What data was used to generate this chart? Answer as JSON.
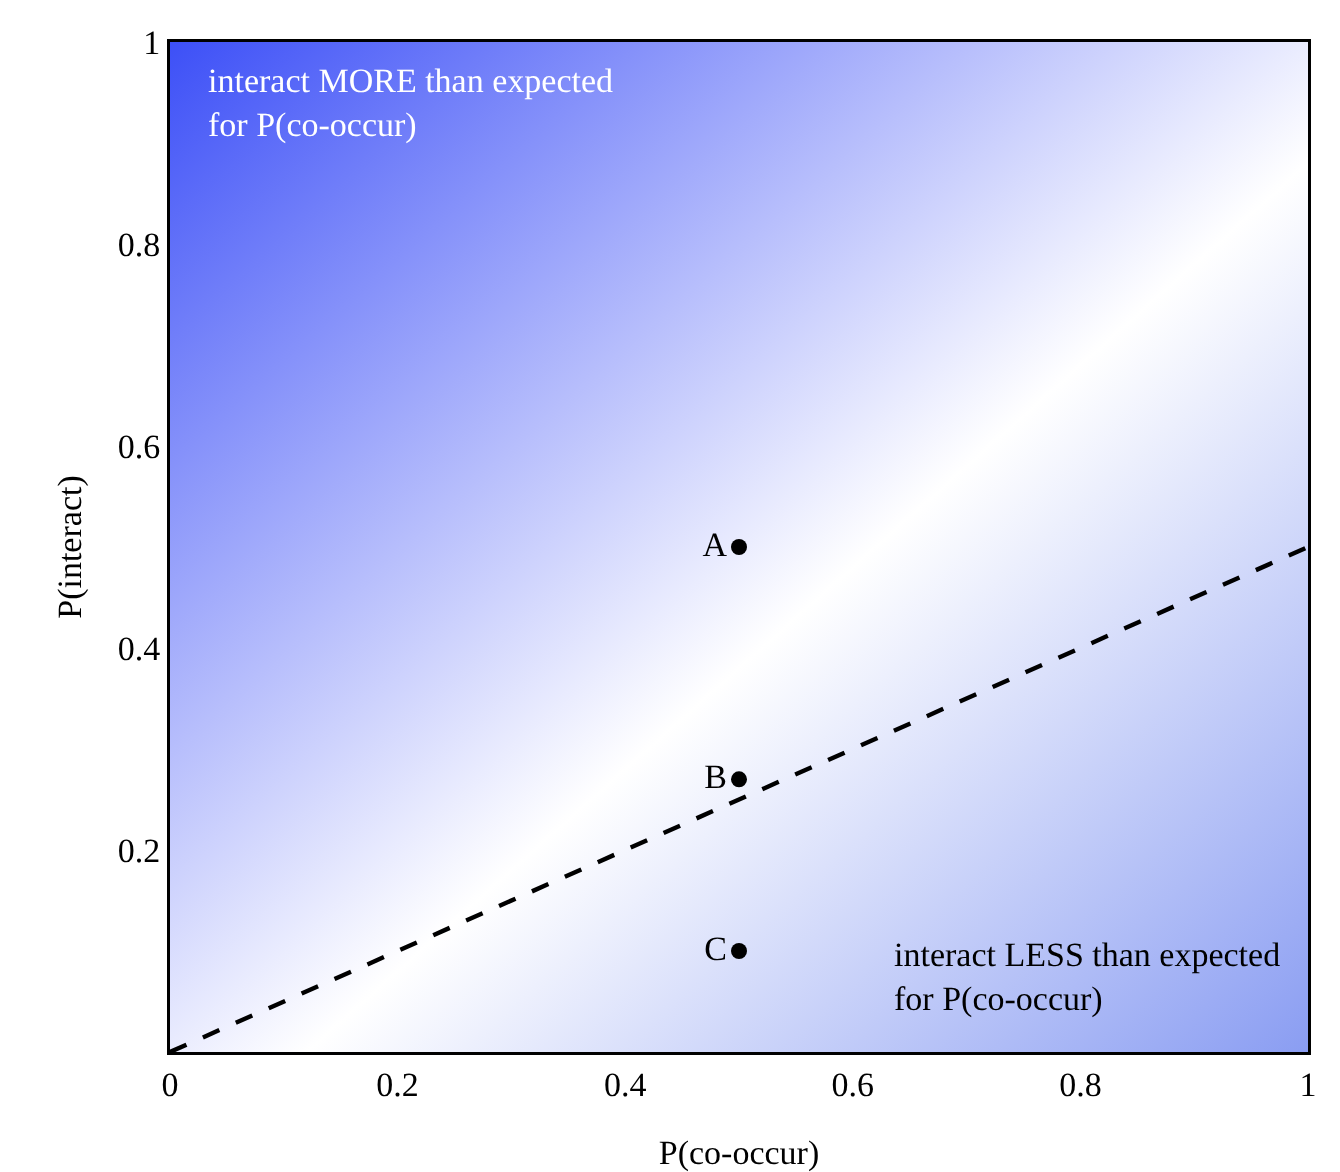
{
  "chart_data": {
    "type": "scatter",
    "xlabel": "P(co-occur)",
    "ylabel": "P(interact)",
    "xlim": [
      0,
      1
    ],
    "ylim": [
      0,
      1
    ],
    "xticks": [
      0,
      0.2,
      0.4,
      0.6,
      0.8,
      1
    ],
    "yticks": [
      0.2,
      0.4,
      0.6,
      0.8,
      1
    ],
    "grid": false,
    "series": [
      {
        "type": "line",
        "color": "#000000",
        "line_style": "dashed",
        "marker": "none",
        "x": [
          0,
          1
        ],
        "values": [
          0,
          0.5
        ]
      },
      {
        "type": "scatter",
        "color": "#000000",
        "marker": "circle",
        "x": [
          0.5,
          0.5,
          0.5
        ],
        "values": [
          0.5,
          0.27,
          0.1
        ],
        "value_labels": [
          "A",
          "B",
          "C"
        ]
      }
    ],
    "annotations": [
      "interact MORE than expected for P(co-occur)",
      "interact LESS than expected for P(co-occur)"
    ]
  }
}
